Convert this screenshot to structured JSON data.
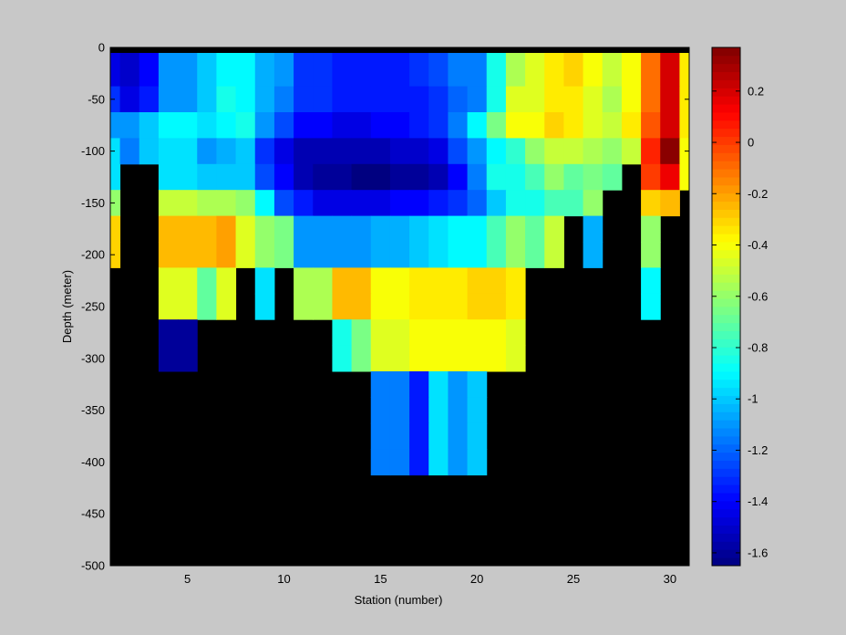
{
  "chart_data": {
    "type": "heatmap",
    "title": "",
    "xlabel": "Station (number)",
    "ylabel": "Depth (meter)",
    "xlim": [
      1,
      31
    ],
    "ylim": [
      -500,
      0
    ],
    "x_ticks": [
      5,
      10,
      15,
      20,
      25,
      30
    ],
    "y_ticks": [
      0,
      -50,
      -100,
      -150,
      -200,
      -250,
      -300,
      -350,
      -400,
      -450,
      -500
    ],
    "colorbar": {
      "colormap": "jet",
      "range": [
        -1.65,
        0.37
      ],
      "ticks": [
        0.2,
        0,
        -0.2,
        -0.4,
        -0.6,
        -0.8,
        -1,
        -1.2,
        -1.4,
        -1.6
      ]
    },
    "missing_color": "#000000",
    "background_color": "#c8c8c8",
    "stations": [
      1,
      2,
      3,
      4,
      5,
      6,
      7,
      8,
      9,
      10,
      11,
      12,
      13,
      14,
      15,
      16,
      17,
      18,
      19,
      20,
      21,
      22,
      23,
      24,
      25,
      26,
      27,
      28,
      29,
      30,
      31
    ],
    "depths": [
      -25,
      -50,
      -75,
      -100,
      -125,
      -150,
      -175,
      -200,
      -225,
      -250,
      -275,
      -300,
      -325,
      -350,
      -375,
      -400
    ],
    "values_note": "rows = depths (top to bottom), columns = stations 1..31; null = no data",
    "values": [
      [
        -1.45,
        -1.5,
        -1.4,
        -1.1,
        -1.1,
        -1.0,
        -0.9,
        -0.9,
        -1.05,
        -1.1,
        -1.3,
        -1.3,
        -1.35,
        -1.35,
        -1.35,
        -1.35,
        -1.3,
        -1.25,
        -1.15,
        -1.15,
        -0.85,
        -0.55,
        -0.45,
        -0.35,
        -0.3,
        -0.4,
        -0.5,
        -0.4,
        -0.1,
        0.2,
        -0.35
      ],
      [
        -1.3,
        -1.45,
        -1.35,
        -1.1,
        -1.1,
        -1.0,
        -0.85,
        -0.9,
        -1.05,
        -1.15,
        -1.3,
        -1.3,
        -1.35,
        -1.35,
        -1.35,
        -1.35,
        -1.35,
        -1.3,
        -1.2,
        -1.15,
        -0.85,
        -0.45,
        -0.45,
        -0.35,
        -0.35,
        -0.45,
        -0.55,
        -0.4,
        -0.1,
        0.2,
        -0.35
      ],
      [
        -1.1,
        -1.1,
        -1.0,
        -0.9,
        -0.9,
        -0.95,
        -0.9,
        -0.85,
        -1.1,
        -1.25,
        -1.4,
        -1.4,
        -1.45,
        -1.45,
        -1.4,
        -1.4,
        -1.35,
        -1.3,
        -1.15,
        -0.9,
        -0.65,
        -0.4,
        -0.4,
        -0.3,
        -0.35,
        -0.45,
        -0.5,
        -0.35,
        -0.05,
        0.2,
        -0.35
      ],
      [
        -0.95,
        -1.15,
        -1.0,
        -0.95,
        -0.95,
        -1.1,
        -1.05,
        -1.0,
        -1.3,
        -1.45,
        -1.55,
        -1.55,
        -1.55,
        -1.55,
        -1.55,
        -1.5,
        -1.5,
        -1.45,
        -1.25,
        -1.1,
        -0.9,
        -0.8,
        -0.6,
        -0.5,
        -0.5,
        -0.55,
        -0.6,
        -0.5,
        0.05,
        0.35,
        -0.4
      ],
      [
        -0.95,
        null,
        null,
        -0.95,
        -0.95,
        -1.0,
        -1.0,
        -1.0,
        -1.25,
        -1.4,
        -1.55,
        -1.6,
        -1.6,
        -1.65,
        -1.65,
        -1.6,
        -1.6,
        -1.55,
        -1.4,
        -1.15,
        -0.85,
        -0.85,
        -0.75,
        -0.6,
        -0.7,
        -0.65,
        -0.7,
        null,
        0.0,
        0.15,
        -0.4
      ],
      [
        -0.6,
        null,
        null,
        -0.5,
        -0.5,
        -0.55,
        -0.55,
        -0.6,
        -0.9,
        -1.25,
        -1.35,
        -1.45,
        -1.45,
        -1.45,
        -1.45,
        -1.4,
        -1.4,
        -1.35,
        -1.3,
        -1.2,
        -1.0,
        -0.85,
        -0.85,
        -0.75,
        -0.75,
        -0.6,
        null,
        null,
        -0.3,
        -0.25,
        null
      ],
      [
        -0.3,
        null,
        null,
        -0.25,
        -0.25,
        -0.25,
        -0.2,
        -0.45,
        -0.6,
        -0.65,
        -1.1,
        -1.1,
        -1.1,
        -1.1,
        -1.05,
        -1.05,
        -1.0,
        -0.95,
        -0.9,
        -0.9,
        -0.75,
        -0.6,
        -0.7,
        -0.5,
        null,
        -1.05,
        null,
        null,
        -0.6,
        null,
        null
      ],
      [
        -0.3,
        null,
        null,
        -0.25,
        -0.25,
        -0.25,
        -0.2,
        -0.45,
        -0.6,
        -0.65,
        -1.1,
        -1.1,
        -1.1,
        -1.1,
        -1.05,
        -1.05,
        -1.0,
        -0.95,
        -0.9,
        -0.9,
        -0.75,
        -0.6,
        -0.7,
        -0.5,
        null,
        -1.05,
        null,
        null,
        -0.6,
        null,
        null
      ],
      [
        null,
        null,
        null,
        -0.45,
        -0.45,
        -0.7,
        -0.45,
        null,
        -0.95,
        null,
        -0.55,
        -0.55,
        -0.25,
        -0.25,
        -0.4,
        -0.4,
        -0.35,
        -0.35,
        -0.35,
        -0.3,
        -0.3,
        -0.35,
        null,
        null,
        null,
        null,
        null,
        null,
        -0.9,
        null,
        null
      ],
      [
        null,
        null,
        null,
        -0.45,
        -0.45,
        -0.7,
        -0.45,
        null,
        -0.95,
        null,
        -0.55,
        -0.55,
        -0.25,
        -0.25,
        -0.4,
        -0.4,
        -0.35,
        -0.35,
        -0.35,
        -0.3,
        -0.3,
        -0.35,
        null,
        null,
        null,
        null,
        null,
        null,
        -0.9,
        null,
        null
      ],
      [
        null,
        null,
        null,
        -1.6,
        -1.6,
        null,
        null,
        null,
        null,
        null,
        null,
        null,
        -0.85,
        -0.65,
        -0.45,
        -0.45,
        -0.4,
        -0.4,
        -0.4,
        -0.4,
        -0.4,
        -0.45,
        null,
        null,
        null,
        null,
        null,
        null,
        null,
        null,
        null
      ],
      [
        null,
        null,
        null,
        -1.6,
        -1.6,
        null,
        null,
        null,
        null,
        null,
        null,
        null,
        -0.85,
        -0.65,
        -0.45,
        -0.45,
        -0.4,
        -0.4,
        -0.4,
        -0.4,
        -0.4,
        -0.45,
        null,
        null,
        null,
        null,
        null,
        null,
        null,
        null,
        null
      ],
      [
        null,
        null,
        null,
        null,
        null,
        null,
        null,
        null,
        null,
        null,
        null,
        null,
        null,
        null,
        -1.15,
        -1.15,
        -1.35,
        -0.95,
        -1.1,
        -1.0,
        null,
        null,
        null,
        null,
        null,
        null,
        null,
        null,
        null,
        null,
        null
      ],
      [
        null,
        null,
        null,
        null,
        null,
        null,
        null,
        null,
        null,
        null,
        null,
        null,
        null,
        null,
        -1.15,
        -1.15,
        -1.35,
        -0.95,
        -1.1,
        -1.0,
        null,
        null,
        null,
        null,
        null,
        null,
        null,
        null,
        null,
        null,
        null
      ],
      [
        null,
        null,
        null,
        null,
        null,
        null,
        null,
        null,
        null,
        null,
        null,
        null,
        null,
        null,
        -1.15,
        -1.15,
        -1.35,
        -0.95,
        -1.1,
        -1.0,
        null,
        null,
        null,
        null,
        null,
        null,
        null,
        null,
        null,
        null,
        null
      ],
      [
        null,
        null,
        null,
        null,
        null,
        null,
        null,
        null,
        null,
        null,
        null,
        null,
        null,
        null,
        -1.15,
        -1.15,
        -1.35,
        -0.95,
        -1.1,
        -1.0,
        null,
        null,
        null,
        null,
        null,
        null,
        null,
        null,
        null,
        null,
        null
      ]
    ]
  }
}
